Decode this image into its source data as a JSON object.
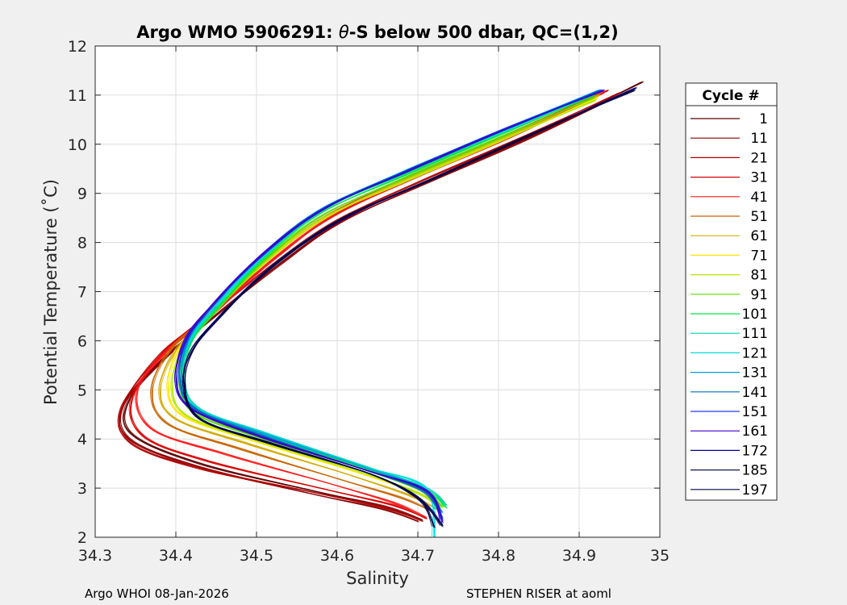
{
  "footer": {
    "left": "Argo WHOI 08-Jan-2026",
    "right": "STEPHEN RISER at aoml"
  },
  "chart_data": {
    "type": "line",
    "title_prefix": "Argo WMO 5906291: ",
    "title_theta": "θ",
    "title_suffix": "-S below 500 dbar,  QC=(1,2)",
    "xlabel": "Salinity",
    "ylabel": "Potential Temperature (˚C)",
    "xlim": [
      34.3,
      35.0
    ],
    "ylim": [
      2,
      12
    ],
    "xticks": [
      34.3,
      34.4,
      34.5,
      34.6,
      34.7,
      34.8,
      34.9,
      35.0
    ],
    "xtick_labels": [
      "34.3",
      "34.4",
      "34.5",
      "34.6",
      "34.7",
      "34.8",
      "34.9",
      "35"
    ],
    "yticks": [
      2,
      3,
      4,
      5,
      6,
      7,
      8,
      9,
      10,
      11,
      12
    ],
    "yticks_labels": [
      "2",
      "3",
      "4",
      "5",
      "6",
      "7",
      "8",
      "9",
      "10",
      "11",
      "12"
    ],
    "grid": true,
    "legend_placement": "outside-right",
    "legend_title": "Cycle #",
    "series": [
      {
        "name": "1",
        "color": "#5a0000",
        "salinity": [
          34.978,
          34.845,
          34.72,
          34.612,
          34.532,
          34.452,
          34.39,
          34.342,
          34.345,
          34.43,
          34.57,
          34.66,
          34.705
        ],
        "theta": [
          11.27,
          10.2,
          9.3,
          8.5,
          7.6,
          6.55,
          5.7,
          4.8,
          4.1,
          3.5,
          2.95,
          2.62,
          2.35
        ]
      },
      {
        "name": "11",
        "color": "#8b0000",
        "salinity": [
          34.963,
          34.835,
          34.71,
          34.604,
          34.524,
          34.444,
          34.383,
          34.335,
          34.342,
          34.425,
          34.565,
          34.655,
          34.7
        ],
        "theta": [
          11.1,
          10.1,
          9.2,
          8.4,
          7.5,
          6.45,
          5.6,
          4.7,
          4.0,
          3.45,
          2.9,
          2.58,
          2.32
        ]
      },
      {
        "name": "21",
        "color": "#b00000",
        "salinity": [
          34.95,
          34.83,
          34.705,
          34.6,
          34.52,
          34.44,
          34.38,
          34.332,
          34.345,
          34.43,
          34.57,
          34.66,
          34.705
        ],
        "theta": [
          11.05,
          10.15,
          9.25,
          8.45,
          7.55,
          6.5,
          5.7,
          4.6,
          3.9,
          3.4,
          2.92,
          2.6,
          2.33
        ]
      },
      {
        "name": "31",
        "color": "#d80000",
        "salinity": [
          34.935,
          34.82,
          34.7,
          34.596,
          34.52,
          34.445,
          34.385,
          34.345,
          34.36,
          34.44,
          34.58,
          34.67,
          34.71
        ],
        "theta": [
          11.1,
          10.2,
          9.35,
          8.55,
          7.65,
          6.6,
          5.75,
          4.8,
          4.05,
          3.55,
          3.0,
          2.65,
          2.38
        ]
      },
      {
        "name": "41",
        "color": "#ff1a1a",
        "salinity": [
          34.93,
          34.815,
          34.695,
          34.592,
          34.516,
          34.45,
          34.39,
          34.352,
          34.37,
          34.46,
          34.59,
          34.67,
          34.71
        ],
        "theta": [
          11.05,
          10.15,
          9.3,
          8.5,
          7.6,
          6.6,
          5.8,
          5.0,
          4.2,
          3.7,
          3.1,
          2.7,
          2.4
        ]
      },
      {
        "name": "51",
        "color": "#c86400",
        "salinity": [
          34.926,
          34.81,
          34.69,
          34.588,
          34.512,
          34.45,
          34.395,
          34.37,
          34.39,
          34.48,
          34.6,
          34.68,
          34.72
        ],
        "theta": [
          11.05,
          10.2,
          9.35,
          8.55,
          7.65,
          6.65,
          5.85,
          5.0,
          4.3,
          3.8,
          3.2,
          2.8,
          2.5
        ]
      },
      {
        "name": "61",
        "color": "#d2aa00",
        "salinity": [
          34.924,
          34.808,
          34.688,
          34.586,
          34.51,
          34.448,
          34.4,
          34.38,
          34.4,
          34.49,
          34.61,
          34.69,
          34.725
        ],
        "theta": [
          11.0,
          10.15,
          9.3,
          8.5,
          7.6,
          6.6,
          5.8,
          5.0,
          4.4,
          3.9,
          3.3,
          2.85,
          2.55
        ]
      },
      {
        "name": "71",
        "color": "#ffe600",
        "salinity": [
          34.922,
          34.806,
          34.686,
          34.585,
          34.51,
          34.45,
          34.405,
          34.39,
          34.41,
          34.5,
          34.62,
          34.7,
          34.73
        ],
        "theta": [
          10.95,
          10.1,
          9.25,
          8.5,
          7.6,
          6.65,
          5.85,
          5.05,
          4.45,
          3.95,
          3.35,
          2.9,
          2.6
        ]
      },
      {
        "name": "81",
        "color": "#b4e600",
        "salinity": [
          34.92,
          34.805,
          34.685,
          34.584,
          34.51,
          34.452,
          34.41,
          34.395,
          34.415,
          34.505,
          34.625,
          34.7,
          34.725
        ],
        "theta": [
          10.9,
          10.1,
          9.25,
          8.5,
          7.6,
          6.65,
          5.85,
          5.05,
          4.45,
          3.95,
          3.35,
          2.9,
          2.6
        ]
      },
      {
        "name": "91",
        "color": "#5adc00",
        "salinity": [
          34.918,
          34.803,
          34.683,
          34.582,
          34.51,
          34.455,
          34.415,
          34.405,
          34.425,
          34.51,
          34.63,
          34.705,
          34.73
        ],
        "theta": [
          10.95,
          10.15,
          9.3,
          8.55,
          7.65,
          6.7,
          5.9,
          5.1,
          4.5,
          4.0,
          3.4,
          2.95,
          2.62
        ]
      },
      {
        "name": "101",
        "color": "#00e646",
        "salinity": [
          34.918,
          34.802,
          34.682,
          34.58,
          34.51,
          34.456,
          34.418,
          34.41,
          34.43,
          34.515,
          34.635,
          34.71,
          34.735
        ],
        "theta": [
          11.0,
          10.2,
          9.35,
          8.6,
          7.7,
          6.75,
          5.95,
          5.15,
          4.55,
          4.05,
          3.4,
          2.95,
          2.6
        ]
      },
      {
        "name": "111",
        "color": "#00d2a0",
        "salinity": [
          34.92,
          34.803,
          34.683,
          34.581,
          34.51,
          34.455,
          34.418,
          34.41,
          34.43,
          34.515,
          34.635,
          34.71,
          34.735
        ],
        "theta": [
          11.05,
          10.25,
          9.4,
          8.65,
          7.75,
          6.8,
          6.0,
          5.2,
          4.6,
          4.1,
          3.45,
          3.0,
          2.65
        ]
      },
      {
        "name": "121",
        "color": "#00dcdc",
        "salinity": [
          34.922,
          34.804,
          34.684,
          34.582,
          34.51,
          34.455,
          34.417,
          34.408,
          34.428,
          34.513,
          34.633,
          34.71,
          34.72
        ],
        "theta": [
          11.05,
          10.25,
          9.45,
          8.65,
          7.75,
          6.8,
          6.0,
          5.2,
          4.6,
          4.1,
          3.45,
          3.0,
          2.0
        ]
      },
      {
        "name": "131",
        "color": "#00a0dc",
        "salinity": [
          34.924,
          34.805,
          34.685,
          34.583,
          34.51,
          34.454,
          34.416,
          34.405,
          34.425,
          34.51,
          34.63,
          34.705,
          34.73
        ],
        "theta": [
          11.1,
          10.3,
          9.45,
          8.7,
          7.8,
          6.85,
          6.05,
          5.2,
          4.6,
          4.1,
          3.45,
          3.0,
          2.5
        ]
      },
      {
        "name": "141",
        "color": "#006eb4",
        "salinity": [
          34.926,
          34.806,
          34.686,
          34.584,
          34.51,
          34.453,
          34.415,
          34.405,
          34.425,
          34.51,
          34.63,
          34.705,
          34.73
        ],
        "theta": [
          11.1,
          10.3,
          9.45,
          8.7,
          7.8,
          6.85,
          6.05,
          5.2,
          4.6,
          4.05,
          3.4,
          2.95,
          2.4
        ]
      },
      {
        "name": "151",
        "color": "#1e3cff",
        "salinity": [
          34.928,
          34.806,
          34.687,
          34.585,
          34.51,
          34.452,
          34.414,
          34.4,
          34.42,
          34.505,
          34.63,
          34.71,
          34.73
        ],
        "theta": [
          11.1,
          10.3,
          9.45,
          8.7,
          7.8,
          6.85,
          6.05,
          5.2,
          4.6,
          4.05,
          3.4,
          2.95,
          2.35
        ]
      },
      {
        "name": "161",
        "color": "#3c00c8",
        "salinity": [
          34.93,
          34.807,
          34.688,
          34.586,
          34.51,
          34.452,
          34.413,
          34.4,
          34.42,
          34.505,
          34.63,
          34.71,
          34.73
        ],
        "theta": [
          11.1,
          10.3,
          9.45,
          8.7,
          7.8,
          6.85,
          6.05,
          5.2,
          4.6,
          4.05,
          3.4,
          2.95,
          2.3
        ]
      },
      {
        "name": "172",
        "color": "#000096",
        "salinity": [
          34.97,
          34.84,
          34.72,
          34.61,
          34.525,
          34.46,
          34.42,
          34.41,
          34.43,
          34.52,
          34.64,
          34.7,
          34.73
        ],
        "theta": [
          11.15,
          10.2,
          9.3,
          8.5,
          7.6,
          6.6,
          5.8,
          5.1,
          4.4,
          3.9,
          3.3,
          2.8,
          2.25
        ]
      },
      {
        "name": "185",
        "color": "#14144b",
        "salinity": [
          34.968,
          34.84,
          34.72,
          34.608,
          34.522,
          34.458,
          34.42,
          34.41,
          34.43,
          34.52,
          34.64,
          34.7,
          34.73
        ],
        "theta": [
          11.1,
          10.2,
          9.3,
          8.5,
          7.55,
          6.55,
          5.8,
          5.1,
          4.4,
          3.9,
          3.3,
          2.8,
          2.22
        ]
      },
      {
        "name": "197",
        "color": "#000046",
        "salinity": [
          34.965,
          34.84,
          34.72,
          34.608,
          34.522,
          34.458,
          34.42,
          34.41,
          34.43,
          34.52,
          34.64,
          34.7,
          34.72
        ],
        "theta": [
          11.1,
          10.2,
          9.3,
          8.5,
          7.55,
          6.55,
          5.8,
          5.1,
          4.4,
          3.9,
          3.3,
          2.8,
          2.2
        ]
      }
    ]
  }
}
